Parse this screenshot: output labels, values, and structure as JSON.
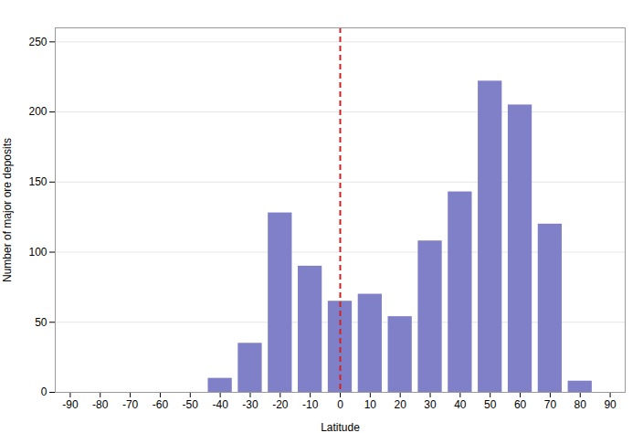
{
  "chart_data": {
    "type": "bar",
    "x": [
      -90,
      -80,
      -70,
      -60,
      -50,
      -40,
      -30,
      -20,
      -10,
      0,
      10,
      20,
      30,
      40,
      50,
      60,
      70,
      80,
      90
    ],
    "values": [
      0,
      0,
      0,
      0,
      0,
      10,
      35,
      128,
      90,
      65,
      70,
      54,
      108,
      143,
      222,
      205,
      120,
      8,
      0
    ],
    "color": "#8080c8",
    "xlabel": "Latitude",
    "ylabel": "Number of major ore deposits",
    "xlim": [
      -95,
      95
    ],
    "xticks": [
      -90,
      -80,
      -70,
      -60,
      -50,
      -40,
      -30,
      -20,
      -10,
      0,
      10,
      20,
      30,
      40,
      50,
      60,
      70,
      80,
      90
    ],
    "ylim": [
      0,
      260
    ],
    "yticks": [
      0,
      50,
      100,
      150,
      200,
      250
    ],
    "grid": true,
    "vline": {
      "x": 0,
      "color": "#cc2222",
      "line_style": "dashed"
    }
  }
}
